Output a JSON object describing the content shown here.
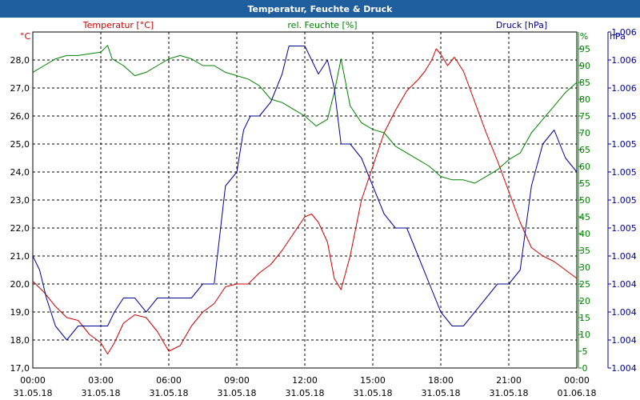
{
  "window": {
    "title": "Temperatur, Feuchte & Druck"
  },
  "chart_data": {
    "type": "line",
    "title": "Temperatur, Feuchte & Druck",
    "grid": true,
    "x_ticks": [
      {
        "time": "00:00",
        "date": "31.05.18"
      },
      {
        "time": "03:00",
        "date": "31.05.18"
      },
      {
        "time": "06:00",
        "date": "31.05.18"
      },
      {
        "time": "09:00",
        "date": "31.05.18"
      },
      {
        "time": "12:00",
        "date": "31.05.18"
      },
      {
        "time": "15:00",
        "date": "31.05.18"
      },
      {
        "time": "18:00",
        "date": "31.05.18"
      },
      {
        "time": "21:00",
        "date": "31.05.18"
      },
      {
        "time": "00:00",
        "date": "01.06.18"
      }
    ],
    "xlim": [
      0,
      24
    ],
    "axes": {
      "temperature": {
        "label": "Temperatur [°C]",
        "unit": "°C",
        "color": "#cc0000",
        "ylim": [
          17.0,
          29.0
        ],
        "ticks": [
          "17,0",
          "18,0",
          "19,0",
          "20,0",
          "21,0",
          "22,0",
          "23,0",
          "24,0",
          "25,0",
          "26,0",
          "27,0",
          "28,0"
        ]
      },
      "humidity": {
        "label": "rel. Feuchte [%]",
        "unit": "%",
        "color": "#008000",
        "ylim": [
          0,
          100
        ],
        "ticks": [
          "0",
          "5",
          "10",
          "15",
          "20",
          "25",
          "30",
          "35",
          "40",
          "45",
          "50",
          "55",
          "60",
          "65",
          "70",
          "75",
          "80",
          "85",
          "90",
          "95"
        ]
      },
      "pressure": {
        "label": "Druck [hPa]",
        "unit": "hPa",
        "color": "#000099",
        "ylim": [
          0,
          12
        ],
        "ticks": [
          "1.004",
          "1.004",
          "1.004",
          "1.004",
          "1.004",
          "1.005",
          "1.005",
          "1.005",
          "1.005",
          "1.005",
          "1.006",
          "1.006",
          "1.006"
        ]
      }
    },
    "series": [
      {
        "name": "Temperatur",
        "axis": "temperature",
        "color": "#cc0000",
        "x": [
          0,
          0.5,
          1,
          1.5,
          2,
          2.5,
          3,
          3.3,
          3.6,
          4,
          4.5,
          5,
          5.5,
          6,
          6.5,
          7,
          7.5,
          8,
          8.5,
          9,
          9.5,
          10,
          10.5,
          11,
          11.5,
          12,
          12.3,
          12.6,
          13,
          13.3,
          13.6,
          14,
          14.5,
          15,
          15.5,
          16,
          16.5,
          17,
          17.3,
          17.6,
          17.8,
          18,
          18.3,
          18.6,
          19,
          19.5,
          20,
          20.5,
          21,
          21.5,
          22,
          22.5,
          23,
          23.5,
          24
        ],
        "values": [
          20.1,
          19.7,
          19.2,
          18.8,
          18.7,
          18.2,
          17.9,
          17.5,
          17.9,
          18.6,
          18.9,
          18.8,
          18.3,
          17.6,
          17.8,
          18.5,
          19.0,
          19.3,
          19.9,
          20.0,
          20.0,
          20.4,
          20.7,
          21.2,
          21.8,
          22.4,
          22.5,
          22.2,
          21.5,
          20.2,
          19.8,
          21.0,
          23.0,
          24.2,
          25.4,
          26.2,
          26.9,
          27.3,
          27.6,
          28.0,
          28.4,
          28.2,
          27.8,
          28.1,
          27.6,
          26.5,
          25.4,
          24.4,
          23.3,
          22.2,
          21.3,
          21.0,
          20.8,
          20.5,
          20.2
        ]
      },
      {
        "name": "rel. Feuchte",
        "axis": "humidity",
        "color": "#008000",
        "x": [
          0,
          0.5,
          1,
          1.5,
          2,
          2.5,
          3,
          3.3,
          3.5,
          4,
          4.5,
          5,
          5.5,
          6,
          6.5,
          7,
          7.5,
          8,
          8.5,
          9,
          9.5,
          10,
          10.5,
          11,
          11.5,
          12,
          12.5,
          13,
          13.3,
          13.6,
          14,
          14.5,
          15,
          15.5,
          16,
          16.5,
          17,
          17.5,
          18,
          18.5,
          19,
          19.5,
          20,
          20.5,
          21,
          21.5,
          22,
          22.5,
          23,
          23.5,
          24
        ],
        "values": [
          88,
          90,
          92,
          93,
          93,
          93.5,
          94,
          96,
          92,
          90,
          87,
          88,
          90,
          92,
          93,
          92,
          90,
          90,
          88,
          87,
          86,
          84,
          80,
          79,
          77,
          75,
          72,
          74,
          82,
          92,
          78,
          73,
          71,
          70,
          66,
          64,
          62,
          60,
          57,
          56,
          56,
          55,
          57,
          59,
          62,
          64,
          70,
          74,
          78,
          82,
          85
        ]
      },
      {
        "name": "Druck",
        "axis": "pressure",
        "color": "#000099",
        "x": [
          0,
          0.3,
          0.6,
          1,
          1.5,
          2,
          2.5,
          3,
          3.3,
          3.6,
          4,
          4.5,
          5,
          5.5,
          6,
          6.5,
          7,
          7.5,
          8,
          8.5,
          9,
          9.3,
          9.6,
          10,
          10.5,
          11,
          11.3,
          11.6,
          12,
          12.3,
          12.6,
          13,
          13.3,
          13.6,
          14,
          14.5,
          15,
          15.5,
          16,
          16.5,
          17,
          17.5,
          18,
          18.5,
          19,
          19.5,
          20,
          20.5,
          21,
          21.5,
          22,
          22.5,
          23,
          23.5,
          24
        ],
        "values": [
          4.0,
          3.5,
          2.5,
          1.5,
          1.0,
          1.5,
          1.5,
          1.5,
          1.5,
          2.0,
          2.5,
          2.5,
          2.0,
          2.5,
          2.5,
          2.5,
          2.5,
          3.0,
          3.0,
          6.5,
          7.0,
          8.5,
          9.0,
          9.0,
          9.5,
          10.5,
          11.5,
          11.5,
          11.5,
          11.0,
          10.5,
          11.0,
          10.0,
          8.0,
          8.0,
          7.5,
          6.5,
          5.5,
          5.0,
          5.0,
          4.0,
          3.0,
          2.0,
          1.5,
          1.5,
          2.0,
          2.5,
          3.0,
          3.0,
          3.5,
          6.5,
          8.0,
          8.5,
          7.5,
          7.0
        ]
      }
    ]
  }
}
